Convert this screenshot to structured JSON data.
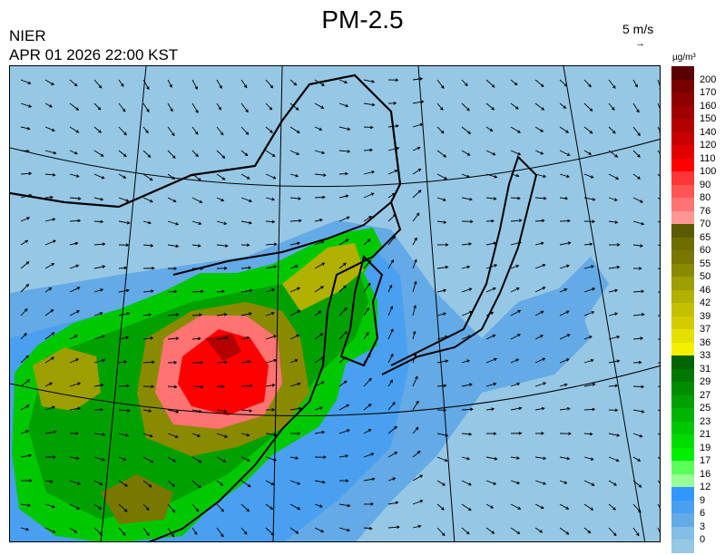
{
  "header": {
    "title": "PM-2.5",
    "organization": "NIER",
    "timestamp": "APR 01 2026 22:00 KST",
    "vector_scale": "5 m/s",
    "vector_arrow": "→"
  },
  "legend": {
    "unit": "µg/m³",
    "labels": [
      "200",
      "170",
      "160",
      "150",
      "140",
      "120",
      "110",
      "100",
      "90",
      "80",
      "76",
      "70",
      "65",
      "60",
      "55",
      "50",
      "46",
      "42",
      "39",
      "37",
      "36",
      "33",
      "31",
      "29",
      "27",
      "25",
      "23",
      "21",
      "19",
      "17",
      "16",
      "12",
      "9",
      "6",
      "3",
      "0"
    ],
    "colors": [
      "#5a0000",
      "#780000",
      "#8c0000",
      "#a00000",
      "#b40000",
      "#c80000",
      "#e10000",
      "#ff0000",
      "#ff3636",
      "#ff5555",
      "#ff7373",
      "#ff9696",
      "#5a5a00",
      "#6e6e00",
      "#787800",
      "#8a8a00",
      "#9e9e00",
      "#b2b000",
      "#c4c000",
      "#d4cc00",
      "#e6e000",
      "#f5f000",
      "#006400",
      "#007800",
      "#008c00",
      "#00a000",
      "#00b400",
      "#00c800",
      "#00dc00",
      "#00f000",
      "#5aff5a",
      "#96ff96",
      "#3296ff",
      "#4aa0f0",
      "#64aae6",
      "#82bee6",
      "#96c8e6"
    ]
  },
  "map": {
    "background_color": "#96c8e6"
  }
}
